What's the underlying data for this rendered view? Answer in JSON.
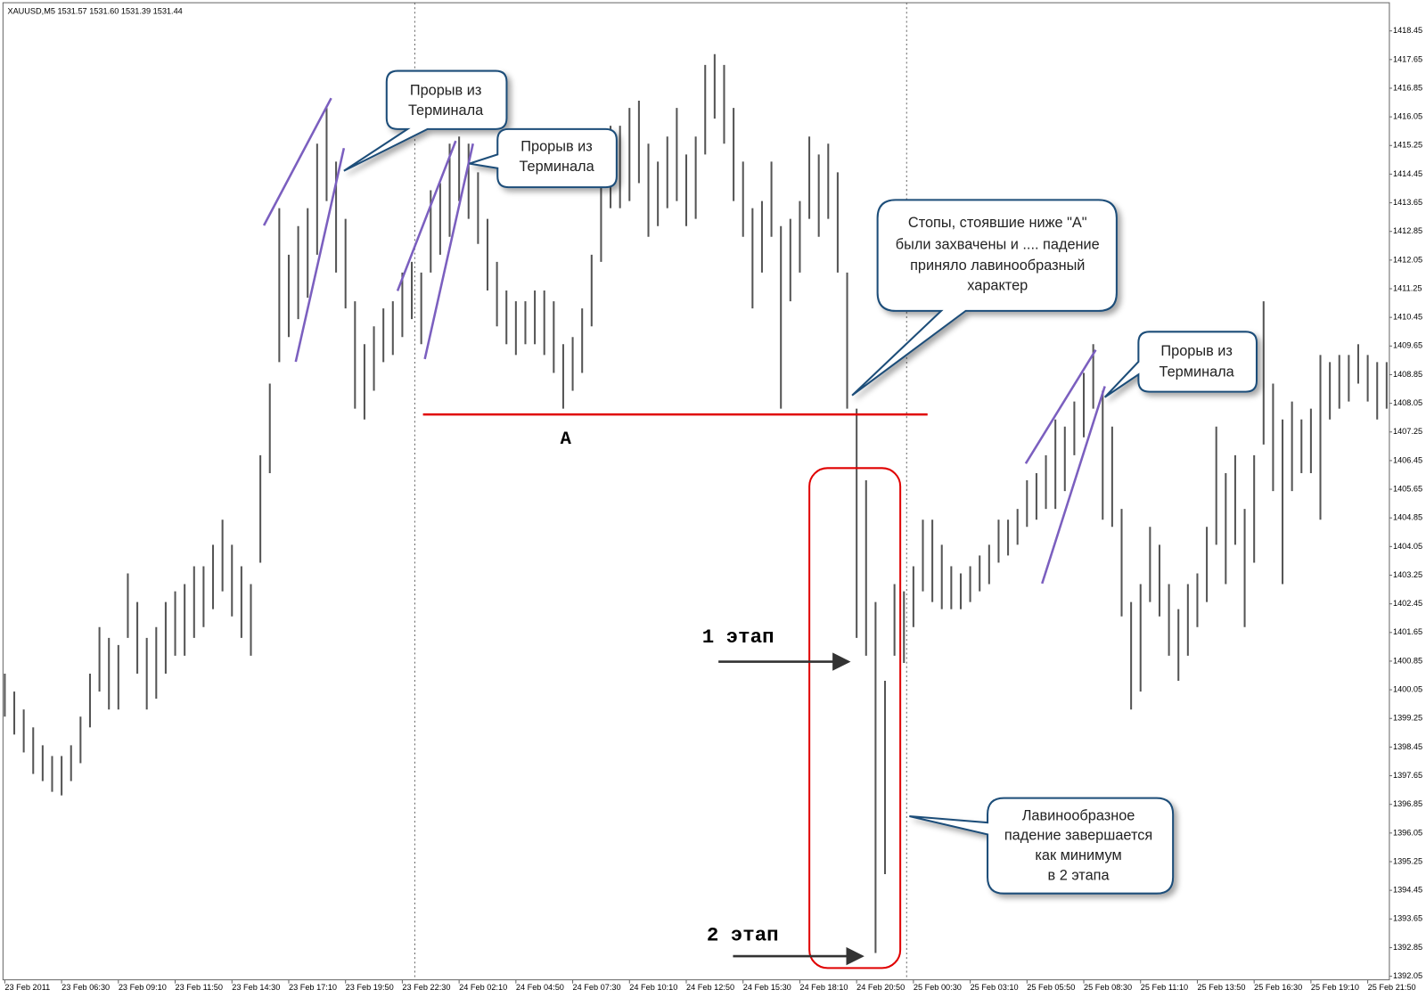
{
  "chart_data": {
    "type": "range",
    "title": "XAUUSD,M5  1531.57 1531.60 1531.39 1531.44",
    "color": "#555555",
    "categories": [
      "23 Feb 2011",
      null,
      null,
      null,
      null,
      null,
      "23 Feb 06:30",
      null,
      null,
      null,
      null,
      null,
      "23 Feb 09:10",
      null,
      null,
      null,
      null,
      null,
      "23 Feb 11:50",
      null,
      null,
      null,
      null,
      null,
      "23 Feb 14:30",
      null,
      null,
      null,
      null,
      null,
      "23 Feb 17:10",
      null,
      null,
      null,
      null,
      null,
      "23 Feb 19:50",
      null,
      null,
      null,
      null,
      null,
      "23 Feb 22:30",
      null,
      null,
      null,
      null,
      null,
      "24 Feb 02:10",
      null,
      null,
      null,
      null,
      null,
      "24 Feb 04:50",
      null,
      null,
      null,
      null,
      null,
      "24 Feb 07:30",
      null,
      null,
      null,
      null,
      null,
      "24 Feb 10:10",
      null,
      null,
      null,
      null,
      null,
      "24 Feb 12:50",
      null,
      null,
      null,
      null,
      null,
      "24 Feb 15:30",
      null,
      null,
      null,
      null,
      null,
      "24 Feb 18:10",
      null,
      null,
      null,
      null,
      null,
      "24 Feb 20:50",
      null,
      null,
      null,
      null,
      null,
      "25 Feb 00:30",
      null,
      null,
      null,
      null,
      null,
      "25 Feb 03:10",
      null,
      null,
      null,
      null,
      null,
      "25 Feb 05:50",
      null,
      null,
      null,
      null,
      null,
      "25 Feb 08:30",
      null,
      null,
      null,
      null,
      null,
      "25 Feb 11:10",
      null,
      null,
      null,
      null,
      null,
      "25 Feb 13:50",
      null,
      null,
      null,
      null,
      null,
      "25 Feb 16:30",
      null,
      null,
      null,
      null,
      null,
      "25 Feb 19:10",
      null,
      null,
      null,
      null,
      null,
      "25 Feb 21:50",
      null,
      null
    ],
    "high": [
      1400.5,
      1400.0,
      1399.5,
      1399.0,
      1398.5,
      1398.2,
      1398.2,
      1398.5,
      1399.3,
      1400.5,
      1401.8,
      1401.5,
      1401.3,
      1403.3,
      1402.5,
      1401.5,
      1401.8,
      1402.5,
      1402.8,
      1403.0,
      1403.5,
      1403.5,
      1404.1,
      1404.8,
      1404.1,
      1403.5,
      1403.0,
      1406.6,
      1408.6,
      1413.5,
      1412.2,
      1413.0,
      1413.5,
      1415.3,
      1416.3,
      1414.8,
      1413.2,
      1410.9,
      1409.7,
      1410.2,
      1410.7,
      1410.9,
      1411.7,
      1412.0,
      1411.7,
      1414.0,
      1414.2,
      1415.3,
      1415.5,
      1415.3,
      1414.5,
      1413.2,
      1412.0,
      1411.2,
      1410.9,
      1410.9,
      1411.2,
      1411.2,
      1410.9,
      1409.7,
      1409.9,
      1410.7,
      1412.2,
      1414.2,
      1415.8,
      1415.8,
      1416.3,
      1416.5,
      1415.3,
      1414.8,
      1415.5,
      1416.3,
      1415.0,
      1415.5,
      1417.5,
      1417.8,
      1417.5,
      1416.3,
      1414.8,
      1413.5,
      1413.7,
      1414.8,
      1413.0,
      1413.2,
      1413.7,
      1415.5,
      1415.0,
      1415.3,
      1414.5,
      1411.7,
      1407.9,
      1405.9,
      1402.5,
      1400.3,
      1403.0,
      1402.8,
      1403.5,
      1404.8,
      1404.8,
      1404.1,
      1403.5,
      1403.3,
      1403.5,
      1403.8,
      1404.1,
      1404.8,
      1404.8,
      1405.1,
      1405.9,
      1406.1,
      1406.6,
      1407.6,
      1407.4,
      1408.1,
      1408.9,
      1409.7,
      1408.4,
      1407.4,
      1405.1,
      1402.5,
      1403.0,
      1404.6,
      1404.1,
      1403.0,
      1402.3,
      1403.0,
      1403.3,
      1404.6,
      1407.4,
      1406.1,
      1406.6,
      1405.1,
      1406.6,
      1410.9,
      1408.6,
      1407.6,
      1408.1,
      1407.6,
      1407.9,
      1409.4,
      1409.2,
      1409.4,
      1409.4,
      1409.7,
      1409.4,
      1409.2,
      1409.2
    ],
    "low": [
      1399.3,
      1398.8,
      1398.3,
      1397.7,
      1397.5,
      1397.2,
      1397.1,
      1397.5,
      1398.0,
      1399.0,
      1400.0,
      1399.5,
      1399.5,
      1401.5,
      1400.5,
      1399.5,
      1399.8,
      1400.5,
      1401.0,
      1401.0,
      1401.5,
      1401.8,
      1402.3,
      1402.8,
      1402.1,
      1401.5,
      1401.0,
      1403.6,
      1406.1,
      1409.2,
      1409.9,
      1410.4,
      1411.0,
      1412.2,
      1413.7,
      1411.7,
      1410.7,
      1407.9,
      1407.6,
      1408.4,
      1409.2,
      1409.4,
      1409.9,
      1410.4,
      1409.7,
      1411.7,
      1412.2,
      1412.7,
      1413.7,
      1413.2,
      1412.5,
      1411.2,
      1410.2,
      1409.7,
      1409.4,
      1409.7,
      1409.7,
      1409.4,
      1408.9,
      1407.9,
      1408.4,
      1408.9,
      1410.2,
      1412.0,
      1413.5,
      1413.5,
      1413.7,
      1414.2,
      1412.7,
      1413.0,
      1413.5,
      1413.7,
      1413.0,
      1413.2,
      1415.0,
      1416.0,
      1415.3,
      1413.7,
      1412.7,
      1410.7,
      1411.7,
      1412.7,
      1407.9,
      1410.9,
      1411.7,
      1413.2,
      1412.7,
      1413.2,
      1411.7,
      1407.9,
      1401.5,
      1401.0,
      1392.7,
      1394.9,
      1401.0,
      1400.8,
      1401.8,
      1402.8,
      1402.5,
      1402.3,
      1402.3,
      1402.3,
      1402.5,
      1402.8,
      1403.0,
      1403.6,
      1403.8,
      1404.1,
      1404.6,
      1404.8,
      1405.1,
      1405.1,
      1405.6,
      1406.6,
      1407.1,
      1407.9,
      1404.8,
      1404.6,
      1402.1,
      1399.5,
      1400.0,
      1402.5,
      1402.1,
      1401.0,
      1400.3,
      1401.0,
      1401.8,
      1402.5,
      1404.1,
      1403.0,
      1404.1,
      1401.8,
      1403.6,
      1406.9,
      1405.6,
      1403.0,
      1405.6,
      1406.1,
      1406.1,
      1404.8,
      1407.6,
      1407.9,
      1408.1,
      1408.6,
      1408.1,
      1407.6,
      1407.9
    ],
    "ylim": [
      1391.95,
      1419.11
    ],
    "yticks": [
      1418.45,
      1417.65,
      1416.85,
      1416.05,
      1415.25,
      1414.45,
      1413.65,
      1412.85,
      1412.05,
      1411.25,
      1410.45,
      1409.65,
      1408.85,
      1408.05,
      1407.25,
      1406.45,
      1405.65,
      1404.85,
      1404.05,
      1403.25,
      1402.45,
      1401.65,
      1400.85,
      1400.05,
      1399.25,
      1398.45,
      1397.65,
      1396.85,
      1396.05,
      1395.25,
      1394.45,
      1393.65,
      1392.85,
      1392.05
    ],
    "annotations": [
      {
        "lines": [
          "Прорыв из",
          "Терминала"
        ]
      },
      {
        "lines": [
          "Прорыв из",
          "Терминала"
        ]
      },
      {
        "lines": [
          "Стопы, стоявшие ниже \"А\"",
          "были захвачены и .... падение",
          "приняло лавинообразный",
          "характер"
        ]
      },
      {
        "lines": [
          "Прорыв из",
          "Терминала"
        ]
      },
      {
        "lines": [
          "Лавинообразное",
          "падение завершается",
          "как минимум",
          "в 2 этапа"
        ]
      }
    ],
    "labels": [
      "А",
      "1 этап",
      "2 этап"
    ]
  }
}
